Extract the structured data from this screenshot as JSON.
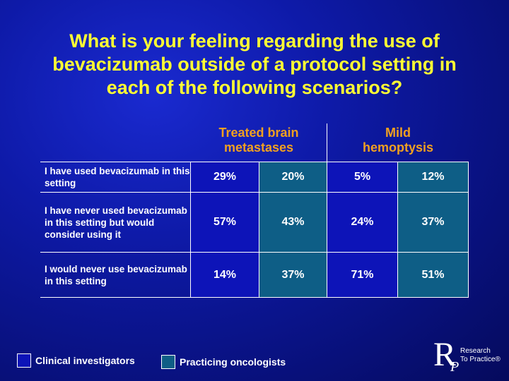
{
  "title": "What is your feeling regarding the use of bevacizumab outside of a protocol setting in each of the following scenarios?",
  "columns": [
    {
      "line1": "Treated brain",
      "line2": "metastases"
    },
    {
      "line1": "Mild",
      "line2": "hemoptysis"
    }
  ],
  "rows": [
    {
      "label": "I have used bevacizumab in this setting",
      "values": [
        "29%",
        "20%",
        "5%",
        "12%"
      ]
    },
    {
      "label": "I have never used bevacizumab in this setting but would consider using it",
      "values": [
        "57%",
        "43%",
        "24%",
        "37%"
      ]
    },
    {
      "label": "I would never use bevacizumab in this setting",
      "values": [
        "14%",
        "37%",
        "71%",
        "51%"
      ]
    }
  ],
  "legend": [
    {
      "label": "Clinical investigators",
      "color": "#0d14b8"
    },
    {
      "label": "Practicing oncologists",
      "color": "#0e5e86"
    }
  ],
  "logo": {
    "letter_r": "R",
    "letter_p": "P",
    "line1": "Research",
    "line2": "To Practice®"
  }
}
